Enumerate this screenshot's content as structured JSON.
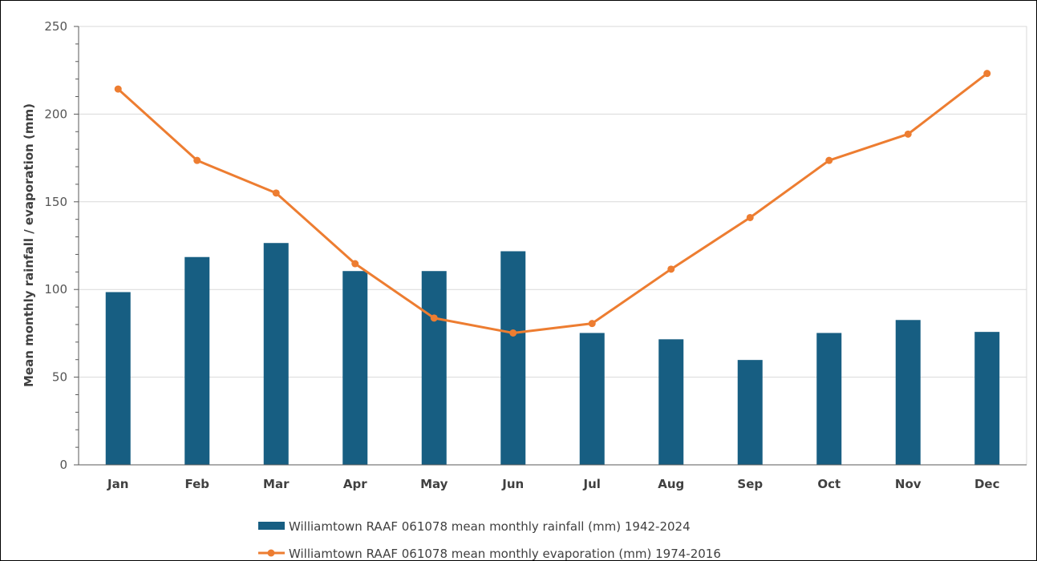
{
  "chart_data": {
    "type": "bar",
    "categories": [
      "Jan",
      "Feb",
      "Mar",
      "Apr",
      "May",
      "Jun",
      "Jul",
      "Aug",
      "Sep",
      "Oct",
      "Nov",
      "Dec"
    ],
    "series": [
      {
        "name": "Williamtown RAAF 061078 mean monthly rainfall (mm) 1942-2024",
        "type": "bar",
        "color": "#175e82",
        "values": [
          98.5,
          118.5,
          126.5,
          110.5,
          110.5,
          121.8,
          75.2,
          71.6,
          59.8,
          75.2,
          82.6,
          75.8
        ]
      },
      {
        "name": "Williamtown RAAF 061078 mean monthly evaporation (mm) 1974-2016",
        "type": "line",
        "color": "#ed7d31",
        "values": [
          214.3,
          173.6,
          155.0,
          114.7,
          83.7,
          75.2,
          80.6,
          111.6,
          141.0,
          173.6,
          188.6,
          223.2
        ]
      }
    ],
    "ylabel": "Mean monthly rainfall / evaporation (mm)",
    "ylim": [
      0,
      250
    ],
    "yticks": [
      "0",
      "50",
      "100",
      "150",
      "200",
      "250"
    ],
    "grid": true,
    "legend_position": "bottom"
  }
}
